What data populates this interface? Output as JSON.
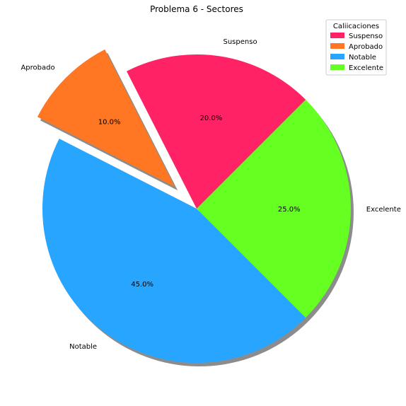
{
  "chart_data": {
    "type": "pie",
    "title": "Problema 6 - Sectores",
    "categories": [
      "Suspenso",
      "Aprobado",
      "Notable",
      "Excelente"
    ],
    "values": [
      20,
      10,
      45,
      25
    ],
    "percent_labels": [
      "20.0%",
      "10.0%",
      "45.0%",
      "25.0%"
    ],
    "colors": [
      "#ff2366",
      "#ff7722",
      "#28a6ff",
      "#66ff22"
    ],
    "explode": [
      0,
      0.2,
      0,
      0
    ],
    "start_angle_deg": 45,
    "shadow": true,
    "legend": {
      "title": "Caliicaciones",
      "placement": "top-right",
      "entries": [
        "Suspenso",
        "Aprobado",
        "Notable",
        "Excelente"
      ]
    }
  }
}
